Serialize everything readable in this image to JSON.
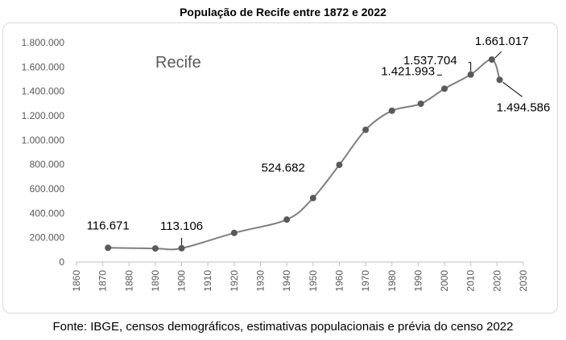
{
  "chart_data": {
    "type": "line",
    "title": "População de Recife entre 1872 e 2022",
    "series_label": "Recife",
    "source": "Fonte: IBGE, censos demográficos, estimativas populacionais e prévia do censo 2022",
    "xlim": [
      1860,
      2030
    ],
    "ylim": [
      0,
      1800000
    ],
    "x_ticks": [
      "1860",
      "1870",
      "1880",
      "1890",
      "1900",
      "1910",
      "1920",
      "1930",
      "1940",
      "1950",
      "1960",
      "1970",
      "1980",
      "1990",
      "2000",
      "2010",
      "2020",
      "2030"
    ],
    "y_ticks": [
      "0",
      "200.000",
      "400.000",
      "600.000",
      "800.000",
      "1.000.000",
      "1.200.000",
      "1.400.000",
      "1.600.000",
      "1.800.000"
    ],
    "points": [
      {
        "x": 1872,
        "y": 116671
      },
      {
        "x": 1890,
        "y": 111556
      },
      {
        "x": 1900,
        "y": 113106
      },
      {
        "x": 1920,
        "y": 238843
      },
      {
        "x": 1940,
        "y": 348424
      },
      {
        "x": 1950,
        "y": 524682
      },
      {
        "x": 1960,
        "y": 797234
      },
      {
        "x": 1970,
        "y": 1084459
      },
      {
        "x": 1980,
        "y": 1240897
      },
      {
        "x": 1991,
        "y": 1298229
      },
      {
        "x": 2000,
        "y": 1421993
      },
      {
        "x": 2010,
        "y": 1537704
      },
      {
        "x": 2018,
        "y": 1661017
      },
      {
        "x": 2021,
        "y": 1494586
      }
    ],
    "data_labels": [
      {
        "x": 1872,
        "y": 116671,
        "text": "116.671"
      },
      {
        "x": 1900,
        "y": 113106,
        "text": "113.106"
      },
      {
        "x": 1950,
        "y": 524682,
        "text": "524.682"
      },
      {
        "x": 2000,
        "y": 1421993,
        "text": "1.421.993"
      },
      {
        "x": 2010,
        "y": 1537704,
        "text": "1.537.704"
      },
      {
        "x": 2018,
        "y": 1661017,
        "text": "1.661.017"
      },
      {
        "x": 2021,
        "y": 1494586,
        "text": "1.494.586"
      }
    ],
    "colors": {
      "line": "#7f7f7f",
      "marker": "#595959",
      "axis": "#bfbfbf",
      "tick_text": "#595959",
      "series_label": "#595959"
    }
  }
}
